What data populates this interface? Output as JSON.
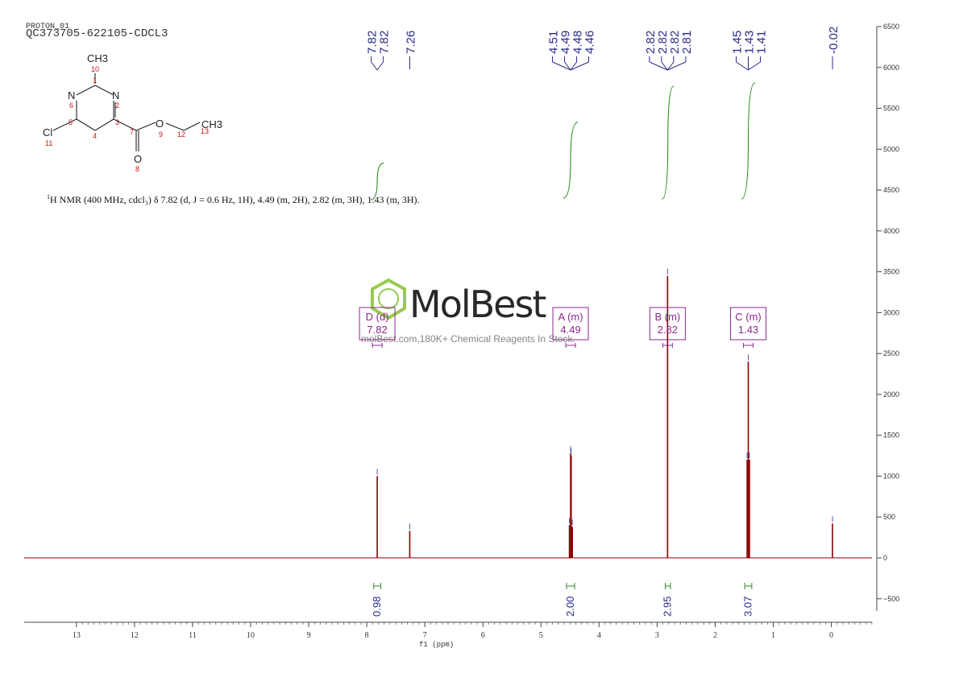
{
  "header": {
    "experiment": "PROTON_01",
    "sample": "QC373705-622105-CDCL3"
  },
  "nmr_summary": {
    "prefix": "1",
    "text": "H NMR (400 MHz, cdcl₃) δ 7.82 (d, J = 0.6 Hz, 1H), 4.49 (m, 2H), 2.82 (m, 3H), 1.43 (m, 3H)."
  },
  "watermark": {
    "brand": "MolBest",
    "tagline": "molBest.com,180K+ Chemical Reagents In Stock."
  },
  "structure": {
    "atoms": [
      "CH3",
      "10",
      "1",
      "N",
      "N",
      "6",
      "2",
      "5",
      "3",
      "Cl",
      "11",
      "4",
      "7",
      "O",
      "9",
      "12",
      "CH3",
      "13",
      "O",
      "8"
    ]
  },
  "colors": {
    "spectrum": "#8b0000",
    "peak_labels": "#2a2a8a",
    "integral": "#2e8b22",
    "multiplet": "#8b2a8b",
    "axis": "#444444"
  },
  "chart_data": {
    "type": "line",
    "xlabel": "f1 (ppm)",
    "ylabel": "",
    "xlim": [
      13.9,
      -0.7
    ],
    "ylim": [
      -650,
      6500
    ],
    "x_ticks": [
      13,
      12,
      11,
      10,
      9,
      8,
      7,
      6,
      5,
      4,
      3,
      2,
      1,
      0
    ],
    "y_ticks": [
      6500,
      6000,
      5500,
      5000,
      4500,
      4000,
      3500,
      3000,
      2500,
      2000,
      1500,
      1000,
      500,
      0,
      -500
    ],
    "peaks": [
      {
        "ppm": 7.82,
        "height": 1000
      },
      {
        "ppm": 7.26,
        "height": 330
      },
      {
        "ppm": 4.51,
        "height": 400
      },
      {
        "ppm": 4.49,
        "height": 1280
      },
      {
        "ppm": 4.48,
        "height": 1250
      },
      {
        "ppm": 4.46,
        "height": 380
      },
      {
        "ppm": 2.82,
        "height": 3450
      },
      {
        "ppm": 1.45,
        "height": 1200
      },
      {
        "ppm": 1.43,
        "height": 2400
      },
      {
        "ppm": 1.41,
        "height": 1200
      },
      {
        "ppm": -0.02,
        "height": 420
      }
    ],
    "peak_label_groups": [
      {
        "labels": [
          "7.82",
          "7.82"
        ]
      },
      {
        "labels": [
          "7.26"
        ]
      },
      {
        "labels": [
          "4.51",
          "4.49",
          "4.48",
          "4.46"
        ]
      },
      {
        "labels": [
          "2.82",
          "2.82",
          "2.82",
          "2.81"
        ]
      },
      {
        "labels": [
          "1.45",
          "1.43",
          "1.41"
        ]
      },
      {
        "labels": [
          "-0.02"
        ]
      }
    ],
    "integrals": [
      {
        "value": "0.98",
        "from": 7.88,
        "to": 7.76
      },
      {
        "value": "2.00",
        "from": 4.56,
        "to": 4.42
      },
      {
        "value": "2.95",
        "from": 2.86,
        "to": 2.77
      },
      {
        "value": "3.07",
        "from": 1.49,
        "to": 1.37
      }
    ],
    "multiplets": [
      {
        "name": "D (d)",
        "shift": "7.82",
        "ppm": 7.82
      },
      {
        "name": "A (m)",
        "shift": "4.49",
        "ppm": 4.49
      },
      {
        "name": "B (m)",
        "shift": "2.82",
        "ppm": 2.82
      },
      {
        "name": "C (m)",
        "shift": "1.43",
        "ppm": 1.43
      }
    ]
  }
}
